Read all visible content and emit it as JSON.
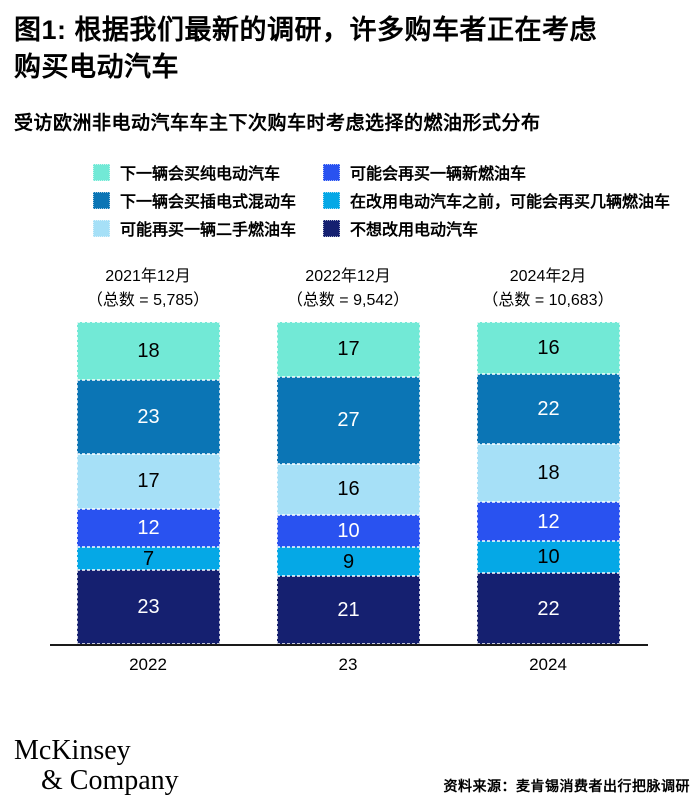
{
  "figure": {
    "title_line1": "图1: 根据我们最新的调研，许多购车者正在考虑",
    "title_line2": "购买电动汽车",
    "subtitle": "受访欧洲非电动汽车车主下次购车时考虑选择的燃油形式分布"
  },
  "chart_data": {
    "type": "bar",
    "stacked": true,
    "unit": "%",
    "ylim": [
      0,
      100
    ],
    "grid": false,
    "legend_position": "top",
    "categories": [
      "2021年12月",
      "2022年12月",
      "2024年2月"
    ],
    "category_totals": [
      "（总数 = 5,785）",
      "（总数 = 9,542）",
      "（总数 = 10,683）"
    ],
    "x_axis_labels": [
      "2022",
      "23",
      "2024"
    ],
    "series": [
      {
        "name": "下一辆会买纯电动汽车",
        "color": "#72E9D6",
        "text_color": "#000000",
        "values": [
          18,
          17,
          16
        ]
      },
      {
        "name": "下一辆会买插电式混动车",
        "color": "#0B75B5",
        "text_color": "#FFFFFF",
        "values": [
          23,
          27,
          22
        ]
      },
      {
        "name": "可能再买一辆二手燃油车",
        "color": "#A6E0F7",
        "text_color": "#000000",
        "values": [
          17,
          16,
          18
        ]
      },
      {
        "name": "可能会再买一辆新燃油车",
        "color": "#2952F0",
        "text_color": "#FFFFFF",
        "values": [
          12,
          10,
          12
        ]
      },
      {
        "name": "在改用电动汽车之前，可能会再买几辆燃油车",
        "color": "#05A8E6",
        "text_color": "#000000",
        "values": [
          7,
          9,
          10
        ]
      },
      {
        "name": "不想改用电动汽车",
        "color": "#152070",
        "text_color": "#FFFFFF",
        "values": [
          23,
          21,
          22
        ]
      }
    ]
  },
  "footer": {
    "logo_line1": "McKinsey",
    "logo_line2": "& Company",
    "source": "资料来源：麦肯锡消费者出行把脉调研"
  }
}
